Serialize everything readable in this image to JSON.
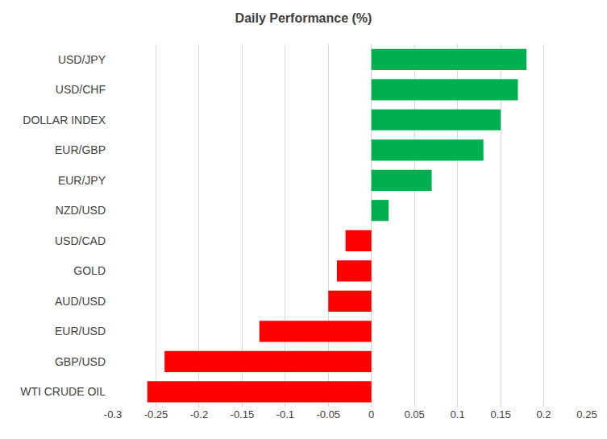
{
  "chart_data": {
    "type": "bar",
    "orientation": "horizontal",
    "title": "Daily Performance (%)",
    "categories": [
      "USD/JPY",
      "USD/CHF",
      "DOLLAR INDEX",
      "EUR/GBP",
      "EUR/JPY",
      "NZD/USD",
      "USD/CAD",
      "GOLD",
      "AUD/USD",
      "EUR/USD",
      "GBP/USD",
      "WTI CRUDE OIL"
    ],
    "values": [
      0.18,
      0.17,
      0.15,
      0.13,
      0.07,
      0.02,
      -0.03,
      -0.04,
      -0.05,
      -0.13,
      -0.24,
      -0.26
    ],
    "colors": [
      "#00b050",
      "#00b050",
      "#00b050",
      "#00b050",
      "#00b050",
      "#00b050",
      "#ff0000",
      "#ff0000",
      "#ff0000",
      "#ff0000",
      "#ff0000",
      "#ff0000"
    ],
    "xlim": [
      -0.3,
      0.25
    ],
    "xticks": [
      -0.3,
      -0.25,
      -0.2,
      -0.15,
      -0.1,
      -0.05,
      0,
      0.05,
      0.1,
      0.15,
      0.2,
      0.25
    ],
    "grid": true
  }
}
